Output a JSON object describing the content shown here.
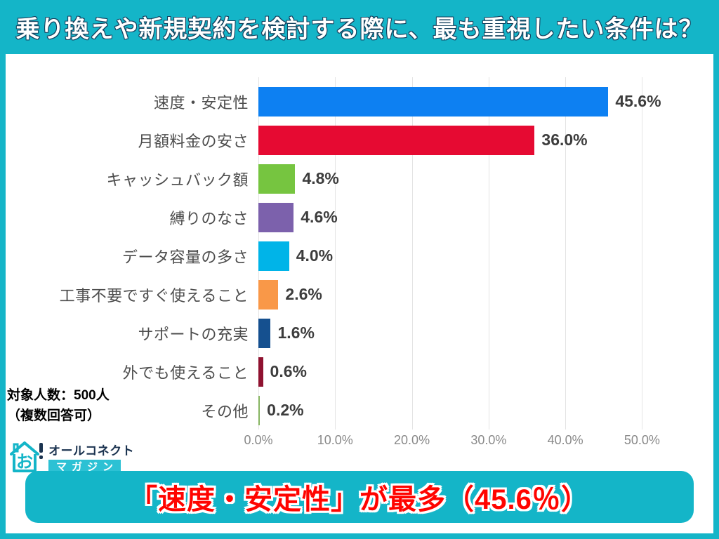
{
  "page": {
    "bg_color": "#14b5c8",
    "header": {
      "title": "乗り換えや新規契約を検討する際に、最も重視したい条件は？"
    },
    "note": {
      "line1": "対象人数：500人",
      "line2": "（複数回答可）"
    },
    "logo": {
      "icon": "house-icon",
      "name": "オールコネクト",
      "sub": "マガジン",
      "teal": "#14b5c8",
      "navy": "#1b3350"
    },
    "banner": {
      "text": "「速度・安定性」が最多（45.6％）",
      "text_color": "#ff0400",
      "bg_color": "#14b5c8"
    }
  },
  "chart_data": {
    "type": "bar",
    "orientation": "horizontal",
    "title": "",
    "xlabel": "",
    "ylabel": "",
    "categories": [
      "速度・安定性",
      "月額料金の安さ",
      "キャッシュバック額",
      "縛りのなさ",
      "データ容量の多さ",
      "工事不要ですぐ使えること",
      "サポートの充実",
      "外でも使えること",
      "その他"
    ],
    "values": [
      45.6,
      36.0,
      4.8,
      4.6,
      4.0,
      2.6,
      1.6,
      0.6,
      0.2
    ],
    "value_labels": [
      "45.6%",
      "36.0%",
      "4.8%",
      "4.6%",
      "4.0%",
      "2.6%",
      "1.6%",
      "0.6%",
      "0.2%"
    ],
    "bar_colors": [
      "#0d80f2",
      "#e60a32",
      "#76c540",
      "#7c61ac",
      "#00b4e8",
      "#f99848",
      "#15508f",
      "#8f1230",
      "#86b561"
    ],
    "x_tick_labels": [
      "0.0%",
      "10.0%",
      "20.0%",
      "30.0%",
      "40.0%",
      "50.0%"
    ],
    "x_tick_values": [
      0,
      10,
      20,
      30,
      40,
      50
    ],
    "xlim": [
      0,
      56
    ],
    "grid": true,
    "legend": "none"
  }
}
